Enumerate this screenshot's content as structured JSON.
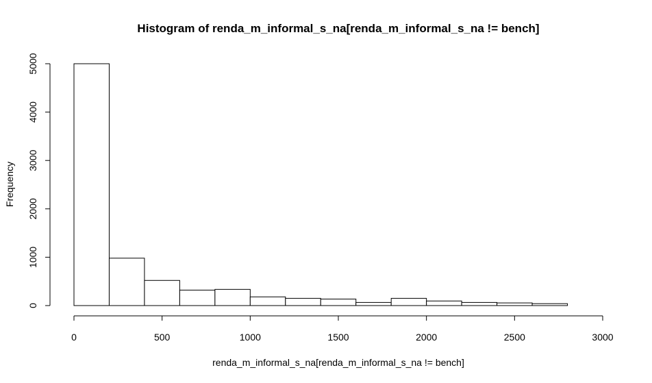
{
  "chart_data": {
    "type": "bar",
    "title": "Histogram of renda_m_informal_s_na[renda_m_informal_s_na != bench]",
    "xlabel": "renda_m_informal_s_na[renda_m_informal_s_na != bench]",
    "ylabel": "Frequency",
    "bin_edges": [
      0,
      200,
      400,
      600,
      800,
      1000,
      1200,
      1400,
      1600,
      1800,
      2000,
      2200,
      2400,
      2600,
      2800
    ],
    "values": [
      5000,
      980,
      520,
      320,
      335,
      180,
      150,
      135,
      65,
      150,
      95,
      65,
      55,
      40
    ],
    "xlim": [
      0,
      3000
    ],
    "ylim": [
      0,
      5000
    ],
    "x_ticks": [
      0,
      500,
      1000,
      1500,
      2000,
      2500,
      3000
    ],
    "y_ticks": [
      0,
      1000,
      2000,
      3000,
      4000,
      5000
    ],
    "x_tick_labels": [
      "0",
      "500",
      "1000",
      "1500",
      "2000",
      "2500",
      "3000"
    ],
    "y_tick_labels": [
      "0",
      "1000",
      "2000",
      "3000",
      "4000",
      "5000"
    ],
    "grid": false,
    "bar_fill": "#ffffff",
    "bar_stroke": "#000000"
  }
}
